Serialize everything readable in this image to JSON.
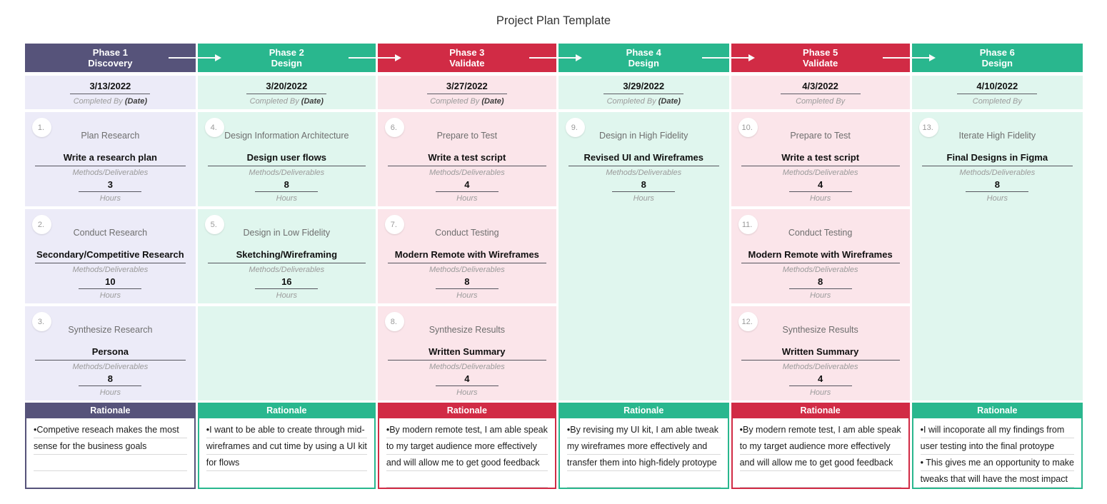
{
  "page": {
    "title": "Project Plan Template"
  },
  "labels": {
    "methods": "Methods/Deliverables",
    "hours": "Hours",
    "rationale": "Rationale"
  },
  "columns": [
    {
      "phase": "Phase 1",
      "stage": "Discovery",
      "date": "3/13/2022",
      "date_label": "Completed By",
      "date_label_suffix": "(Date)",
      "colors": {
        "accent": "#56537A",
        "body_bg": "#ECEBF8"
      },
      "cards": [
        {
          "num": "1.",
          "title": "Plan Research",
          "deliverable": "Write a research plan",
          "hours": "3"
        },
        {
          "num": "2.",
          "title": "Conduct Research",
          "deliverable": "Secondary/Competitive Research",
          "hours": "10"
        },
        {
          "num": "3.",
          "title": "Synthesize Research",
          "deliverable": "Persona",
          "hours": "8"
        }
      ],
      "rationale_lines": [
        "•Competive reseach makes the most",
        "sense for the business goals"
      ]
    },
    {
      "phase": "Phase 2",
      "stage": "Design",
      "date": "3/20/2022",
      "date_label": "Completed By",
      "date_label_suffix": "(Date)",
      "colors": {
        "accent": "#29B78E",
        "body_bg": "#E0F6EE"
      },
      "cards": [
        {
          "num": "4.",
          "title": "Design Information Architecture",
          "deliverable": "Design user flows",
          "hours": "8"
        },
        {
          "num": "5.",
          "title": "Design in Low Fidelity",
          "deliverable": "Sketching/Wireframing",
          "hours": "16"
        }
      ],
      "rationale_lines": [
        "•I want to be able to create through mid-",
        "wireframes and cut time by using a UI kit",
        "for flows"
      ]
    },
    {
      "phase": "Phase 3",
      "stage": "Validate",
      "date": "3/27/2022",
      "date_label": "Completed By",
      "date_label_suffix": "(Date)",
      "colors": {
        "accent": "#D12B45",
        "body_bg": "#FBE5EA"
      },
      "cards": [
        {
          "num": "6.",
          "title": "Prepare to Test",
          "deliverable": "Write a test script",
          "hours": "4"
        },
        {
          "num": "7.",
          "title": "Conduct Testing",
          "deliverable": "Modern Remote with Wireframes",
          "hours": "8"
        },
        {
          "num": "8.",
          "title": "Synthesize Results",
          "deliverable": "Written Summary",
          "hours": "4"
        }
      ],
      "rationale_lines": [
        "•By modern remote test, I am able speak",
        "to my target audience more effectively",
        "and will allow me to get good feedback"
      ]
    },
    {
      "phase": "Phase 4",
      "stage": "Design",
      "date": "3/29/2022",
      "date_label": "Completed By",
      "date_label_suffix": "(Date)",
      "colors": {
        "accent": "#29B78E",
        "body_bg": "#E0F6EE"
      },
      "cards": [
        {
          "num": "9.",
          "title": "Design in High Fidelity",
          "deliverable": "Revised UI and Wireframes",
          "hours": "8"
        }
      ],
      "rationale_lines": [
        "•By revising my UI kit, I am able tweak",
        "my wireframes more effectively and",
        "transfer them into high-fidely protoype"
      ]
    },
    {
      "phase": "Phase 5",
      "stage": "Validate",
      "date": "4/3/2022",
      "date_label": "Completed By",
      "colors": {
        "accent": "#D12B45",
        "body_bg": "#FBE5EA"
      },
      "cards": [
        {
          "num": "10.",
          "title": "Prepare to Test",
          "deliverable": "Write a test script",
          "hours": "4"
        },
        {
          "num": "11.",
          "title": "Conduct Testing",
          "deliverable": "Modern Remote with Wireframes",
          "hours": "8"
        },
        {
          "num": "12.",
          "title": "Synthesize Results",
          "deliverable": "Written Summary",
          "hours": "4"
        }
      ],
      "rationale_lines": [
        "•By modern remote test, I am able speak",
        "to my target audience more effectively",
        "and will allow me to get good feedback"
      ]
    },
    {
      "phase": "Phase 6",
      "stage": "Design",
      "date": "4/10/2022",
      "date_label": "Completed By",
      "colors": {
        "accent": "#29B78E",
        "body_bg": "#E0F6EE"
      },
      "cards": [
        {
          "num": "13.",
          "title": "Iterate High Fidelity",
          "deliverable": "Final Designs in Figma",
          "hours": "8"
        }
      ],
      "rationale_lines": [
        "•I will incoporate all my findings from",
        "user testing into the final protoype",
        "• This gives me an opportunity to make",
        "tweaks that will have the most impact"
      ]
    }
  ]
}
